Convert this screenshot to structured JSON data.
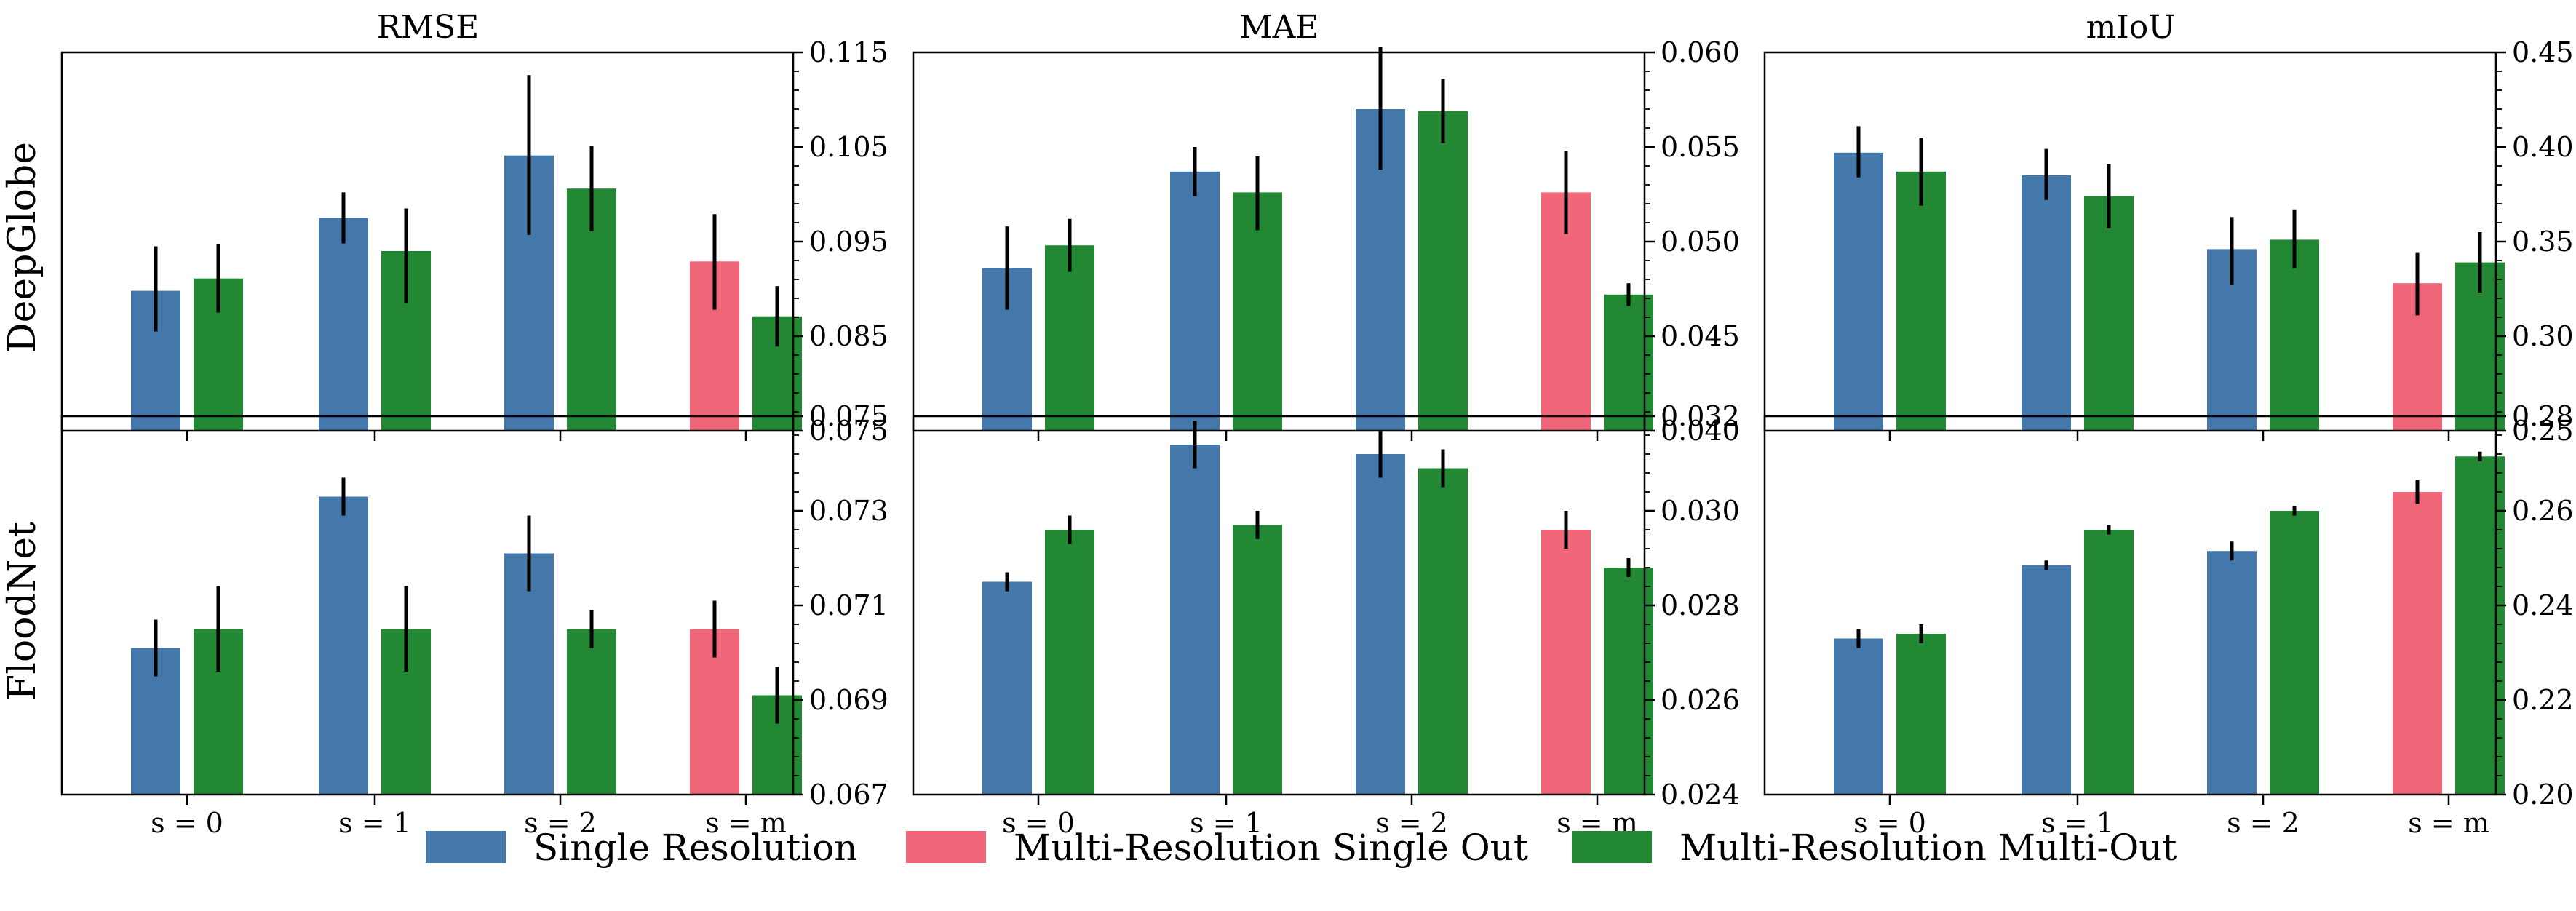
{
  "colors": {
    "single_resolution": "#4477aa",
    "multi_resolution_single_out": "#ee6677",
    "multi_resolution_multi_out": "#228833",
    "error_bar": "#000000"
  },
  "column_titles": [
    "RMSE",
    "MAE",
    "mIoU"
  ],
  "row_labels": [
    "DeepGlobe",
    "FloodNet"
  ],
  "legend": [
    {
      "label": "Single Resolution",
      "color_key": "single_resolution"
    },
    {
      "label": "Multi-Resolution Single Out",
      "color_key": "multi_resolution_single_out"
    },
    {
      "label": "Multi-Resolution Multi-Out",
      "color_key": "multi_resolution_multi_out"
    }
  ],
  "chart_data": [
    {
      "type": "bar",
      "dataset": "DeepGlobe",
      "metric": "RMSE",
      "categories": [
        "s = 0",
        "s = 1",
        "s = 2",
        "s = m"
      ],
      "ylim": [
        0.075,
        0.115
      ],
      "yticks": [
        "0.075",
        "0.085",
        "0.095",
        "0.105",
        "0.115"
      ],
      "bars": [
        {
          "cat": 0,
          "slot": 0,
          "kind": "single_resolution",
          "value": 0.0898,
          "err_low": 0.0855,
          "err_high": 0.0945
        },
        {
          "cat": 0,
          "slot": 1,
          "kind": "multi_resolution_multi_out",
          "value": 0.0911,
          "err_low": 0.0875,
          "err_high": 0.0947
        },
        {
          "cat": 1,
          "slot": 0,
          "kind": "single_resolution",
          "value": 0.0975,
          "err_low": 0.0948,
          "err_high": 0.1002
        },
        {
          "cat": 1,
          "slot": 1,
          "kind": "multi_resolution_multi_out",
          "value": 0.094,
          "err_low": 0.0885,
          "err_high": 0.0985
        },
        {
          "cat": 2,
          "slot": 0,
          "kind": "single_resolution",
          "value": 0.1041,
          "err_low": 0.0957,
          "err_high": 0.1126
        },
        {
          "cat": 2,
          "slot": 1,
          "kind": "multi_resolution_multi_out",
          "value": 0.1006,
          "err_low": 0.0961,
          "err_high": 0.1051
        },
        {
          "cat": 3,
          "slot": 0,
          "kind": "multi_resolution_single_out",
          "value": 0.0929,
          "err_low": 0.0878,
          "err_high": 0.0979
        },
        {
          "cat": 3,
          "slot": 1,
          "kind": "multi_resolution_multi_out",
          "value": 0.0871,
          "err_low": 0.0839,
          "err_high": 0.0903
        }
      ]
    },
    {
      "type": "bar",
      "dataset": "DeepGlobe",
      "metric": "MAE",
      "categories": [
        "s = 0",
        "s = 1",
        "s = 2",
        "s = m"
      ],
      "ylim": [
        0.04,
        0.06
      ],
      "yticks": [
        "0.040",
        "0.045",
        "0.050",
        "0.055",
        "0.060"
      ],
      "bars": [
        {
          "cat": 0,
          "slot": 0,
          "kind": "single_resolution",
          "value": 0.0486,
          "err_low": 0.0464,
          "err_high": 0.0508
        },
        {
          "cat": 0,
          "slot": 1,
          "kind": "multi_resolution_multi_out",
          "value": 0.0498,
          "err_low": 0.0484,
          "err_high": 0.0512
        },
        {
          "cat": 1,
          "slot": 0,
          "kind": "single_resolution",
          "value": 0.0537,
          "err_low": 0.0524,
          "err_high": 0.055
        },
        {
          "cat": 1,
          "slot": 1,
          "kind": "multi_resolution_multi_out",
          "value": 0.0526,
          "err_low": 0.0506,
          "err_high": 0.0545
        },
        {
          "cat": 2,
          "slot": 0,
          "kind": "single_resolution",
          "value": 0.057,
          "err_low": 0.0538,
          "err_high": 0.0603
        },
        {
          "cat": 2,
          "slot": 1,
          "kind": "multi_resolution_multi_out",
          "value": 0.0569,
          "err_low": 0.0552,
          "err_high": 0.0586
        },
        {
          "cat": 3,
          "slot": 0,
          "kind": "multi_resolution_single_out",
          "value": 0.0526,
          "err_low": 0.0504,
          "err_high": 0.0548
        },
        {
          "cat": 3,
          "slot": 1,
          "kind": "multi_resolution_multi_out",
          "value": 0.0472,
          "err_low": 0.0466,
          "err_high": 0.0478
        }
      ]
    },
    {
      "type": "bar",
      "dataset": "DeepGlobe",
      "metric": "mIoU",
      "categories": [
        "s = 0",
        "s = 1",
        "s = 2",
        "s = m"
      ],
      "ylim": [
        0.25,
        0.45
      ],
      "yticks": [
        "0.25",
        "0.30",
        "0.35",
        "0.40",
        "0.45"
      ],
      "bars": [
        {
          "cat": 0,
          "slot": 0,
          "kind": "single_resolution",
          "value": 0.397,
          "err_low": 0.384,
          "err_high": 0.411
        },
        {
          "cat": 0,
          "slot": 1,
          "kind": "multi_resolution_multi_out",
          "value": 0.387,
          "err_low": 0.369,
          "err_high": 0.405
        },
        {
          "cat": 1,
          "slot": 0,
          "kind": "single_resolution",
          "value": 0.385,
          "err_low": 0.372,
          "err_high": 0.399
        },
        {
          "cat": 1,
          "slot": 1,
          "kind": "multi_resolution_multi_out",
          "value": 0.374,
          "err_low": 0.357,
          "err_high": 0.391
        },
        {
          "cat": 2,
          "slot": 0,
          "kind": "single_resolution",
          "value": 0.346,
          "err_low": 0.327,
          "err_high": 0.363
        },
        {
          "cat": 2,
          "slot": 1,
          "kind": "multi_resolution_multi_out",
          "value": 0.351,
          "err_low": 0.336,
          "err_high": 0.367
        },
        {
          "cat": 3,
          "slot": 0,
          "kind": "multi_resolution_single_out",
          "value": 0.328,
          "err_low": 0.311,
          "err_high": 0.344
        },
        {
          "cat": 3,
          "slot": 1,
          "kind": "multi_resolution_multi_out",
          "value": 0.339,
          "err_low": 0.323,
          "err_high": 0.355
        }
      ]
    },
    {
      "type": "bar",
      "dataset": "FloodNet",
      "metric": "RMSE",
      "categories": [
        "s = 0",
        "s = 1",
        "s = 2",
        "s = m"
      ],
      "ylim": [
        0.067,
        0.075
      ],
      "yticks": [
        "0.067",
        "0.069",
        "0.071",
        "0.073",
        "0.075"
      ],
      "bars": [
        {
          "cat": 0,
          "slot": 0,
          "kind": "single_resolution",
          "value": 0.0701,
          "err_low": 0.0695,
          "err_high": 0.0707
        },
        {
          "cat": 0,
          "slot": 1,
          "kind": "multi_resolution_multi_out",
          "value": 0.0705,
          "err_low": 0.0696,
          "err_high": 0.0714
        },
        {
          "cat": 1,
          "slot": 0,
          "kind": "single_resolution",
          "value": 0.0733,
          "err_low": 0.0729,
          "err_high": 0.0737
        },
        {
          "cat": 1,
          "slot": 1,
          "kind": "multi_resolution_multi_out",
          "value": 0.0705,
          "err_low": 0.0696,
          "err_high": 0.0714
        },
        {
          "cat": 2,
          "slot": 0,
          "kind": "single_resolution",
          "value": 0.0721,
          "err_low": 0.0713,
          "err_high": 0.0729
        },
        {
          "cat": 2,
          "slot": 1,
          "kind": "multi_resolution_multi_out",
          "value": 0.0705,
          "err_low": 0.0701,
          "err_high": 0.0709
        },
        {
          "cat": 3,
          "slot": 0,
          "kind": "multi_resolution_single_out",
          "value": 0.0705,
          "err_low": 0.0699,
          "err_high": 0.0711
        },
        {
          "cat": 3,
          "slot": 1,
          "kind": "multi_resolution_multi_out",
          "value": 0.0691,
          "err_low": 0.0685,
          "err_high": 0.0697
        }
      ]
    },
    {
      "type": "bar",
      "dataset": "FloodNet",
      "metric": "MAE",
      "categories": [
        "s = 0",
        "s = 1",
        "s = 2",
        "s = m"
      ],
      "ylim": [
        0.024,
        0.032
      ],
      "yticks": [
        "0.024",
        "0.026",
        "0.028",
        "0.030",
        "0.032"
      ],
      "bars": [
        {
          "cat": 0,
          "slot": 0,
          "kind": "single_resolution",
          "value": 0.0285,
          "err_low": 0.0283,
          "err_high": 0.0287
        },
        {
          "cat": 0,
          "slot": 1,
          "kind": "multi_resolution_multi_out",
          "value": 0.0296,
          "err_low": 0.0293,
          "err_high": 0.0299
        },
        {
          "cat": 1,
          "slot": 0,
          "kind": "single_resolution",
          "value": 0.0314,
          "err_low": 0.0309,
          "err_high": 0.0319
        },
        {
          "cat": 1,
          "slot": 1,
          "kind": "multi_resolution_multi_out",
          "value": 0.0297,
          "err_low": 0.0294,
          "err_high": 0.03
        },
        {
          "cat": 2,
          "slot": 0,
          "kind": "single_resolution",
          "value": 0.0312,
          "err_low": 0.0307,
          "err_high": 0.0317
        },
        {
          "cat": 2,
          "slot": 1,
          "kind": "multi_resolution_multi_out",
          "value": 0.0309,
          "err_low": 0.0305,
          "err_high": 0.0313
        },
        {
          "cat": 3,
          "slot": 0,
          "kind": "multi_resolution_single_out",
          "value": 0.0296,
          "err_low": 0.0292,
          "err_high": 0.03
        },
        {
          "cat": 3,
          "slot": 1,
          "kind": "multi_resolution_multi_out",
          "value": 0.0288,
          "err_low": 0.0286,
          "err_high": 0.029
        }
      ]
    },
    {
      "type": "bar",
      "dataset": "FloodNet",
      "metric": "mIoU",
      "categories": [
        "s = 0",
        "s = 1",
        "s = 2",
        "s = m"
      ],
      "ylim": [
        0.2,
        0.28
      ],
      "yticks": [
        "0.20",
        "0.22",
        "0.24",
        "0.26",
        "0.28"
      ],
      "bars": [
        {
          "cat": 0,
          "slot": 0,
          "kind": "single_resolution",
          "value": 0.233,
          "err_low": 0.231,
          "err_high": 0.235
        },
        {
          "cat": 0,
          "slot": 1,
          "kind": "multi_resolution_multi_out",
          "value": 0.234,
          "err_low": 0.232,
          "err_high": 0.236
        },
        {
          "cat": 1,
          "slot": 0,
          "kind": "single_resolution",
          "value": 0.2485,
          "err_low": 0.2475,
          "err_high": 0.2495
        },
        {
          "cat": 1,
          "slot": 1,
          "kind": "multi_resolution_multi_out",
          "value": 0.256,
          "err_low": 0.255,
          "err_high": 0.257
        },
        {
          "cat": 2,
          "slot": 0,
          "kind": "single_resolution",
          "value": 0.2515,
          "err_low": 0.2495,
          "err_high": 0.2535
        },
        {
          "cat": 2,
          "slot": 1,
          "kind": "multi_resolution_multi_out",
          "value": 0.26,
          "err_low": 0.259,
          "err_high": 0.261
        },
        {
          "cat": 3,
          "slot": 0,
          "kind": "multi_resolution_single_out",
          "value": 0.264,
          "err_low": 0.2615,
          "err_high": 0.2665
        },
        {
          "cat": 3,
          "slot": 1,
          "kind": "multi_resolution_multi_out",
          "value": 0.2715,
          "err_low": 0.2705,
          "err_high": 0.2725
        }
      ]
    }
  ]
}
